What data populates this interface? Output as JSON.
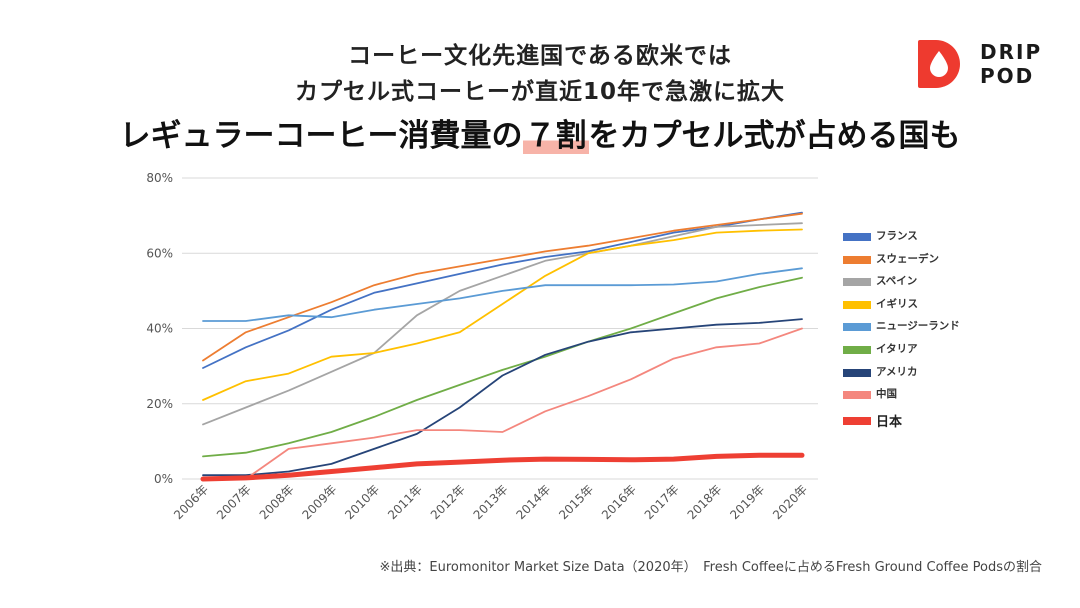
{
  "header": {
    "title_line1": "コーヒー文化先進国である欧米では",
    "title_line2": "カプセル式コーヒーが直近10年で急激に拡大",
    "headline_before": "レギュラーコーヒー消費量の",
    "headline_highlight": "７割",
    "headline_after": "をカプセル式が占める国も"
  },
  "logo": {
    "line1": "DRIP",
    "line2": "POD",
    "color": "#ee3a2f"
  },
  "source_note": "※出典：Euromonitor Market Size Data（2020年）　Fresh Coffeeに占めるFresh Ground Coffee Podsの割合",
  "chart_data": {
    "type": "line",
    "title": "",
    "xlabel": "",
    "ylabel": "",
    "ylim": [
      0,
      80
    ],
    "yticks": [
      0,
      20,
      40,
      60,
      80
    ],
    "ytick_labels": [
      "0%",
      "20%",
      "40%",
      "60%",
      "80%"
    ],
    "grid": true,
    "legend_position": "right",
    "categories": [
      "2006年",
      "2007年",
      "2008年",
      "2009年",
      "2010年",
      "2011年",
      "2012年",
      "2013年",
      "2014年",
      "2015年",
      "2016年",
      "2017年",
      "2018年",
      "2019年",
      "2020年"
    ],
    "series": [
      {
        "name": "フランス",
        "color": "#4472c4",
        "values": [
          29.5,
          35,
          39.5,
          45,
          49.5,
          52,
          54.5,
          57,
          59,
          60.5,
          63,
          65.5,
          67,
          69,
          70.8
        ]
      },
      {
        "name": "スウェーデン",
        "color": "#ed7d31",
        "values": [
          31.5,
          39,
          43,
          47,
          51.5,
          54.5,
          56.5,
          58.5,
          60.5,
          62,
          64,
          66,
          67.5,
          69,
          70.5
        ]
      },
      {
        "name": "スペイン",
        "color": "#a5a5a5",
        "values": [
          14.5,
          19,
          23.5,
          28.5,
          33.5,
          43.5,
          50,
          54,
          58,
          60,
          62,
          64.5,
          67,
          67.5,
          68
        ]
      },
      {
        "name": "イギリス",
        "color": "#ffc000",
        "values": [
          21,
          26,
          28,
          32.5,
          33.5,
          36,
          39,
          46.5,
          54,
          60,
          62,
          63.5,
          65.5,
          66,
          66.3
        ]
      },
      {
        "name": "ニュージーランド",
        "color": "#5b9bd5",
        "values": [
          42,
          42,
          43.5,
          43,
          45,
          46.5,
          48,
          50,
          51.5,
          51.5,
          51.5,
          51.7,
          52.5,
          54.5,
          56
        ]
      },
      {
        "name": "イタリア",
        "color": "#70ad47",
        "values": [
          6,
          7,
          9.5,
          12.5,
          16.5,
          21,
          25,
          29,
          32.5,
          36.5,
          40,
          44,
          48,
          51,
          53.5
        ]
      },
      {
        "name": "アメリカ",
        "color": "#264478",
        "values": [
          1,
          1,
          2,
          4,
          8,
          12,
          19,
          27.5,
          33,
          36.5,
          39,
          40,
          41,
          41.5,
          42.5
        ]
      },
      {
        "name": "中国",
        "color": "#f4877e",
        "values": [
          0,
          0,
          8,
          9.5,
          11,
          13,
          13,
          12.5,
          18,
          22,
          26.5,
          32,
          35,
          36,
          40
        ]
      },
      {
        "name": "日本",
        "color": "#ee3f33",
        "emphasis": true,
        "values": [
          0,
          0.3,
          1,
          2,
          3,
          4,
          4.5,
          5,
          5.3,
          5.2,
          5.1,
          5.3,
          6,
          6.3,
          6.3
        ]
      }
    ]
  }
}
